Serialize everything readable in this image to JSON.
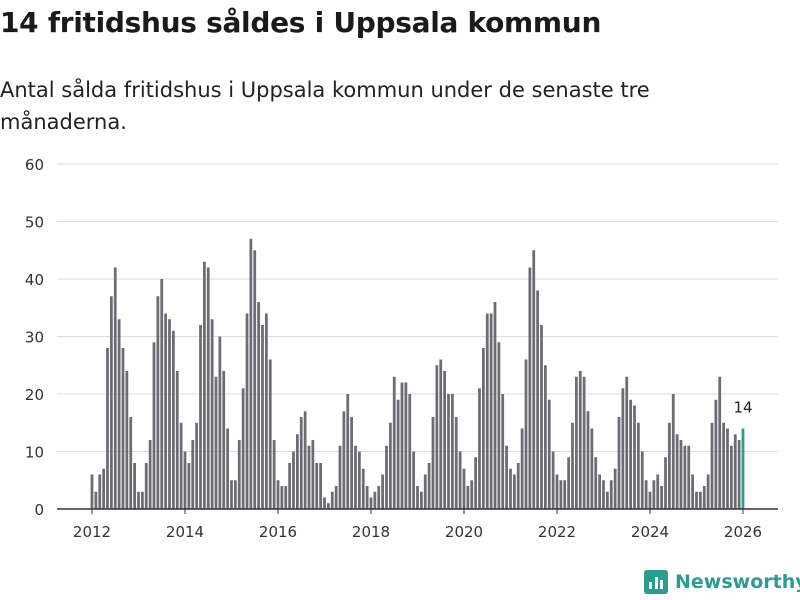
{
  "header": {
    "title": "14 fritidshus såldes i Uppsala kommun",
    "subtitle": "Antal sålda fritidshus i Uppsala kommun under de senaste tre månaderna."
  },
  "brand": {
    "name": "Newsworthy",
    "color": "#2a9d8f"
  },
  "colors": {
    "bar": "#6d6c72",
    "highlight": "#2a9d8f",
    "grid": "#dddddd"
  },
  "chart_data": {
    "type": "bar",
    "title": "14 fritidshus såldes i Uppsala kommun",
    "xlabel": "",
    "ylabel": "",
    "ylim": [
      0,
      60
    ],
    "yticks": [
      "0",
      "10",
      "20",
      "30",
      "40",
      "50",
      "60"
    ],
    "xticks": [
      "2012",
      "2014",
      "2016",
      "2018",
      "2020",
      "2022",
      "2024",
      "2026"
    ],
    "x_start": "2012-01",
    "values": [
      6,
      3,
      6,
      7,
      28,
      37,
      42,
      33,
      28,
      24,
      16,
      8,
      3,
      3,
      8,
      12,
      29,
      37,
      40,
      34,
      33,
      31,
      24,
      15,
      10,
      8,
      12,
      15,
      32,
      43,
      42,
      33,
      23,
      30,
      24,
      14,
      5,
      5,
      12,
      21,
      34,
      47,
      45,
      36,
      32,
      34,
      26,
      12,
      5,
      4,
      4,
      8,
      10,
      13,
      16,
      17,
      11,
      12,
      8,
      8,
      2,
      1,
      3,
      4,
      11,
      17,
      20,
      16,
      11,
      10,
      7,
      4,
      2,
      3,
      4,
      6,
      11,
      15,
      23,
      19,
      22,
      22,
      20,
      10,
      4,
      3,
      6,
      8,
      16,
      25,
      26,
      24,
      20,
      20,
      16,
      10,
      7,
      4,
      5,
      9,
      21,
      28,
      34,
      34,
      36,
      29,
      20,
      11,
      7,
      6,
      8,
      14,
      26,
      42,
      45,
      38,
      32,
      25,
      19,
      10,
      6,
      5,
      5,
      9,
      15,
      23,
      24,
      23,
      17,
      14,
      9,
      6,
      5,
      3,
      5,
      7,
      16,
      21,
      23,
      19,
      18,
      15,
      10,
      5,
      3,
      5,
      6,
      4,
      9,
      15,
      20,
      13,
      12,
      11,
      11,
      6,
      3,
      3,
      4,
      6,
      15,
      19,
      23,
      15,
      14,
      11,
      13,
      12,
      14
    ],
    "last_label": "14"
  }
}
